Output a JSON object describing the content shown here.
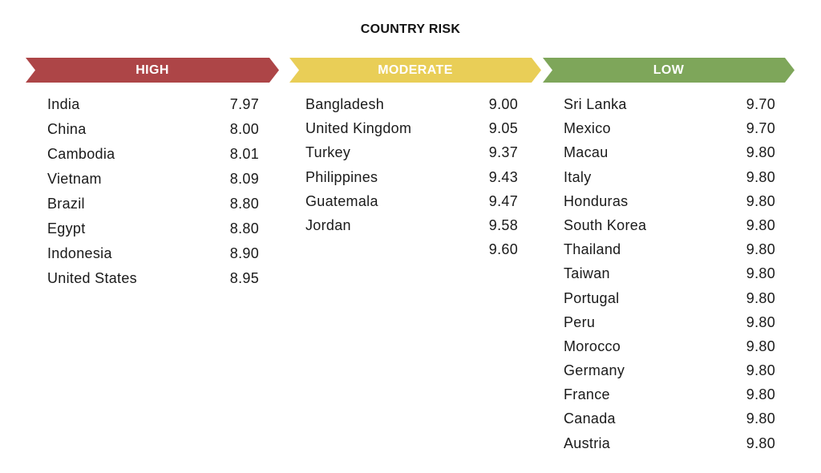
{
  "chart_data": {
    "type": "table",
    "title": "COUNTRY RISK",
    "groups": [
      {
        "label": "HIGH",
        "color": "#ad4547",
        "rows": [
          {
            "country": "India",
            "score": "7.97"
          },
          {
            "country": "China",
            "score": "8.00"
          },
          {
            "country": "Cambodia",
            "score": "8.01"
          },
          {
            "country": "Vietnam",
            "score": "8.09"
          },
          {
            "country": "Brazil",
            "score": "8.80"
          },
          {
            "country": "Egypt",
            "score": "8.80"
          },
          {
            "country": "Indonesia",
            "score": "8.90"
          },
          {
            "country": "United States",
            "score": "8.95"
          }
        ]
      },
      {
        "label": "MODERATE",
        "color": "#e9ce57",
        "rows": [
          {
            "country": "Bangladesh",
            "score": "9.00"
          },
          {
            "country": "United Kingdom",
            "score": "9.05"
          },
          {
            "country": "Turkey",
            "score": "9.37"
          },
          {
            "country": "Philippines",
            "score": "9.43"
          },
          {
            "country": "Guatemala",
            "score": "9.47"
          },
          {
            "country": "Jordan",
            "score": "9.58"
          },
          {
            "country": "",
            "score": "9.60"
          }
        ]
      },
      {
        "label": "LOW",
        "color": "#7ea65a",
        "rows": [
          {
            "country": "Sri Lanka",
            "score": "9.70"
          },
          {
            "country": "Mexico",
            "score": "9.70"
          },
          {
            "country": "Macau",
            "score": "9.80"
          },
          {
            "country": "Italy",
            "score": "9.80"
          },
          {
            "country": "Honduras",
            "score": "9.80"
          },
          {
            "country": "South Korea",
            "score": "9.80"
          },
          {
            "country": "Thailand",
            "score": "9.80"
          },
          {
            "country": "Taiwan",
            "score": "9.80"
          },
          {
            "country": "Portugal",
            "score": "9.80"
          },
          {
            "country": "Peru",
            "score": "9.80"
          },
          {
            "country": "Morocco",
            "score": "9.80"
          },
          {
            "country": "Germany",
            "score": "9.80"
          },
          {
            "country": "France",
            "score": "9.80"
          },
          {
            "country": "Canada",
            "score": "9.80"
          },
          {
            "country": "Austria",
            "score": "9.80"
          }
        ]
      }
    ]
  }
}
